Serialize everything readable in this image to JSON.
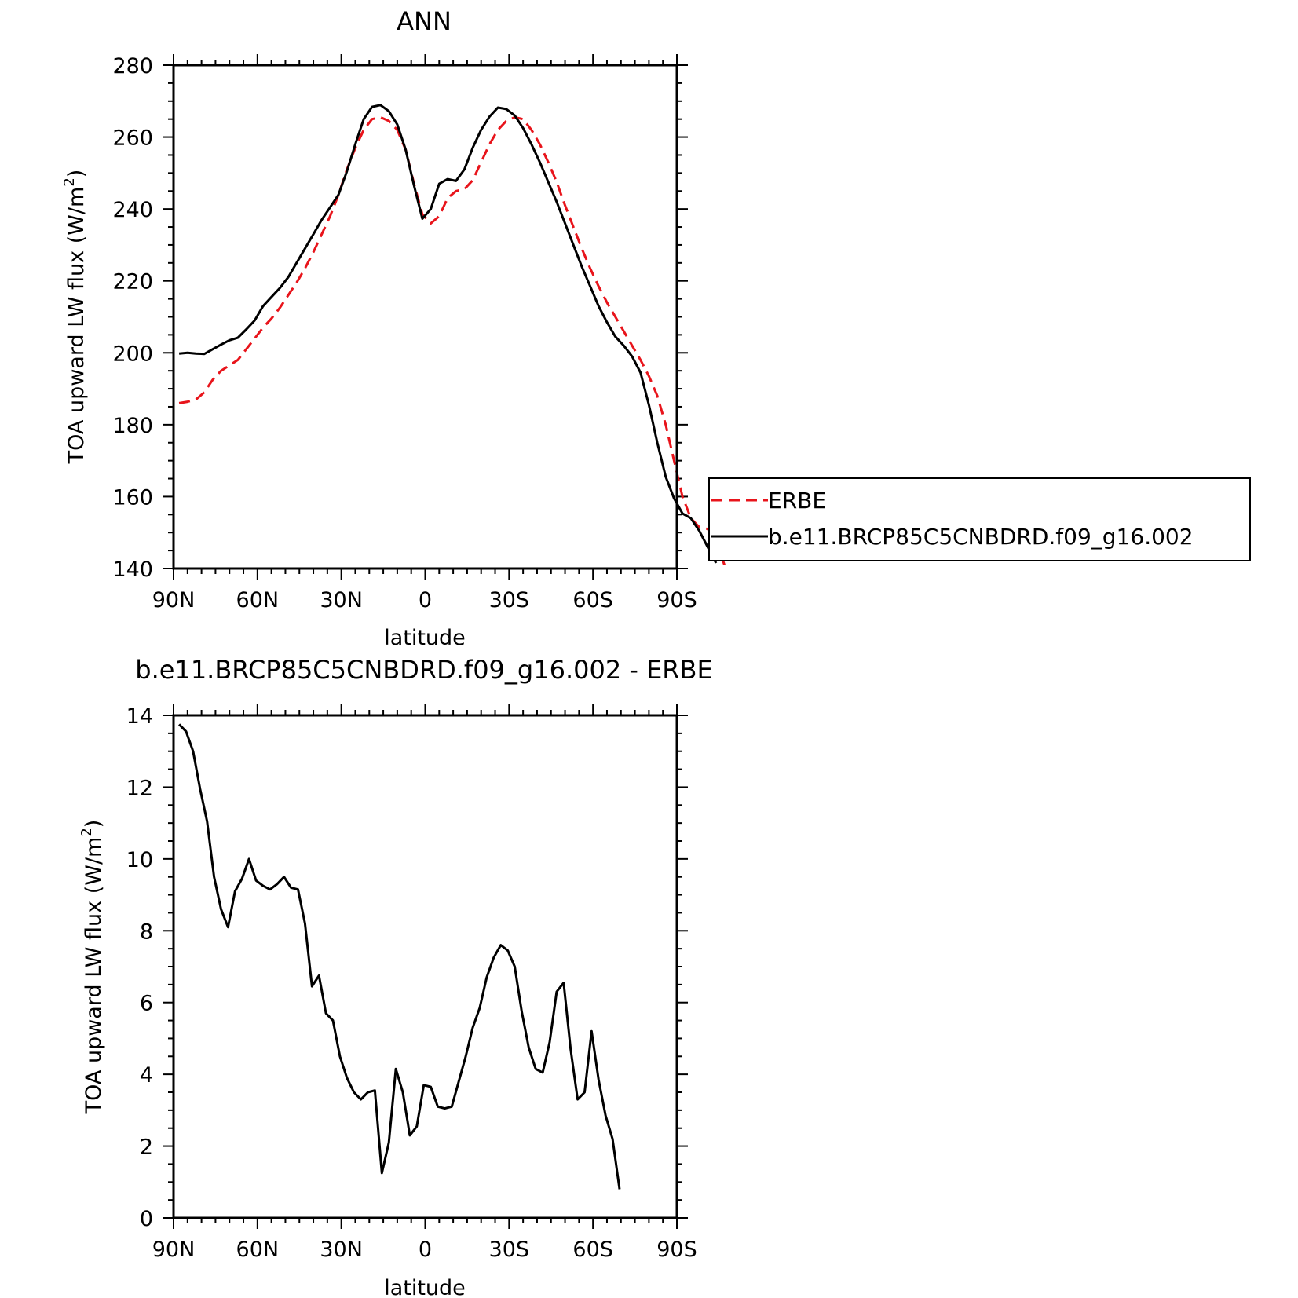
{
  "charts": [
    {
      "type": "line",
      "title": "ANN",
      "xlabel": "latitude",
      "ylabel": "TOA upward LW flux (W/m",
      "ylabel_sup": "2",
      "ylabel_close": ")",
      "xlim": [
        90,
        -90
      ],
      "ylim": [
        140,
        280
      ],
      "x_ticks": [
        {
          "value": 90,
          "label": "90N"
        },
        {
          "value": 60,
          "label": "60N"
        },
        {
          "value": 30,
          "label": "30N"
        },
        {
          "value": 0,
          "label": "0"
        },
        {
          "value": -30,
          "label": "30S"
        },
        {
          "value": -60,
          "label": "60S"
        },
        {
          "value": -90,
          "label": "90S"
        }
      ],
      "x_minor_step": 5,
      "y_ticks": [
        140,
        160,
        180,
        200,
        220,
        240,
        260,
        280
      ],
      "y_minor_step": 5,
      "legend": {
        "placement": "right",
        "entries": [
          {
            "label": "ERBE",
            "color": "#e8141b",
            "dash": true
          },
          {
            "label": "b.e11.BRCP85C5CNBDRD.f09_g16.002",
            "color": "#000000",
            "dash": false
          }
        ]
      },
      "series": [
        {
          "name": "ERBE",
          "color": "#e8141b",
          "dash": true,
          "points": [
            [
              88,
              186
            ],
            [
              85,
              186.4
            ],
            [
              82,
              187
            ],
            [
              79,
              189
            ],
            [
              76,
              192.5
            ],
            [
              73,
              195
            ],
            [
              70,
              196.5
            ],
            [
              67,
              198
            ],
            [
              64,
              201
            ],
            [
              61,
              204
            ],
            [
              58,
              207
            ],
            [
              55,
              209.5
            ],
            [
              52,
              212.5
            ],
            [
              49,
              216
            ],
            [
              46,
              219.5
            ],
            [
              43,
              223.5
            ],
            [
              40,
              228
            ],
            [
              37,
              233
            ],
            [
              34,
              238
            ],
            [
              31,
              244
            ],
            [
              28,
              251
            ],
            [
              25,
              257
            ],
            [
              22,
              262
            ],
            [
              19,
              265
            ],
            [
              16,
              265.5
            ],
            [
              13,
              264.5
            ],
            [
              10,
              262
            ],
            [
              7,
              256.5
            ],
            [
              4,
              247
            ],
            [
              1,
              238.5
            ],
            [
              -2,
              236
            ],
            [
              -5,
              238
            ],
            [
              -8,
              243
            ],
            [
              -11,
              245
            ],
            [
              -14,
              245.5
            ],
            [
              -17,
              248
            ],
            [
              -20,
              253
            ],
            [
              -23,
              258
            ],
            [
              -26,
              262
            ],
            [
              -29,
              264.5
            ],
            [
              -32,
              265.5
            ],
            [
              -35,
              265
            ],
            [
              -38,
              262
            ],
            [
              -41,
              258
            ],
            [
              -44,
              253
            ],
            [
              -47,
              247.5
            ],
            [
              -50,
              241
            ],
            [
              -53,
              235
            ],
            [
              -56,
              229
            ],
            [
              -59,
              223.5
            ],
            [
              -62,
              218.5
            ],
            [
              -65,
              214
            ],
            [
              -68,
              210
            ],
            [
              -71,
              206
            ],
            [
              -74,
              202
            ],
            [
              -77,
              198
            ],
            [
              -80,
              193.5
            ],
            [
              -83,
              188
            ],
            [
              -86,
              180
            ],
            [
              -89,
              170
            ],
            [
              -92,
              160
            ],
            [
              -95,
              154
            ],
            [
              -98,
              151.5
            ],
            [
              -101,
              151
            ],
            [
              -104,
              148
            ],
            [
              -107,
              141
            ]
          ]
        },
        {
          "name": "b.e11.BRCP85C5CNBDRD.f09_g16.002",
          "color": "#000000",
          "dash": false,
          "points": [
            [
              88,
              199.8
            ],
            [
              85,
              200
            ],
            [
              82,
              199.8
            ],
            [
              79,
              199.7
            ],
            [
              76,
              201
            ],
            [
              73,
              202.3
            ],
            [
              70,
              203.5
            ],
            [
              67,
              204.2
            ],
            [
              64,
              206.5
            ],
            [
              61,
              209
            ],
            [
              58,
              213
            ],
            [
              55,
              215.5
            ],
            [
              52,
              218
            ],
            [
              49,
              221
            ],
            [
              46,
              225
            ],
            [
              43,
              229
            ],
            [
              40,
              233
            ],
            [
              37,
              237
            ],
            [
              34,
              240.5
            ],
            [
              31,
              244
            ],
            [
              28,
              250.5
            ],
            [
              25,
              258
            ],
            [
              22,
              265
            ],
            [
              19,
              268.4
            ],
            [
              16,
              268.9
            ],
            [
              13,
              267.2
            ],
            [
              10,
              263.5
            ],
            [
              7,
              256.5
            ],
            [
              4,
              246.5
            ],
            [
              1,
              237.3
            ],
            [
              -2,
              240
            ],
            [
              -5,
              247
            ],
            [
              -8,
              248.3
            ],
            [
              -11,
              247.8
            ],
            [
              -14,
              251
            ],
            [
              -17,
              257
            ],
            [
              -20,
              262
            ],
            [
              -23,
              265.7
            ],
            [
              -26,
              268.2
            ],
            [
              -29,
              267.8
            ],
            [
              -32,
              266
            ],
            [
              -35,
              262.5
            ],
            [
              -38,
              258
            ],
            [
              -41,
              253
            ],
            [
              -44,
              247.5
            ],
            [
              -47,
              242
            ],
            [
              -50,
              236
            ],
            [
              -53,
              230
            ],
            [
              -56,
              224
            ],
            [
              -59,
              218.5
            ],
            [
              -62,
              213
            ],
            [
              -65,
              208.5
            ],
            [
              -68,
              204.5
            ],
            [
              -71,
              202
            ],
            [
              -74,
              199
            ],
            [
              -77,
              194.5
            ],
            [
              -80,
              185.5
            ],
            [
              -83,
              175
            ],
            [
              -86,
              165.5
            ],
            [
              -89,
              159.5
            ],
            [
              -92,
              155.3
            ],
            [
              -95,
              154
            ],
            [
              -98,
              150.5
            ],
            [
              -101,
              146
            ],
            [
              -103,
              143
            ],
            [
              -104,
              141.5
            ]
          ]
        }
      ]
    },
    {
      "type": "line",
      "title": "b.e11.BRCP85C5CNBDRD.f09_g16.002 - ERBE",
      "xlabel": "latitude",
      "ylabel": "TOA upward LW flux (W/m",
      "ylabel_sup": "2",
      "ylabel_close": ")",
      "xlim": [
        90,
        -90
      ],
      "ylim": [
        0,
        14
      ],
      "x_ticks": [
        {
          "value": 90,
          "label": "90N"
        },
        {
          "value": 60,
          "label": "60N"
        },
        {
          "value": 30,
          "label": "30N"
        },
        {
          "value": 0,
          "label": "0"
        },
        {
          "value": -30,
          "label": "30S"
        },
        {
          "value": -60,
          "label": "60S"
        },
        {
          "value": -90,
          "label": "90S"
        }
      ],
      "x_minor_step": 5,
      "y_ticks": [
        0,
        2,
        4,
        6,
        8,
        10,
        12,
        14
      ],
      "y_minor_step": 0.5,
      "series": [
        {
          "name": "",
          "color": "#000000",
          "dash": false,
          "points": [
            [
              88,
              13.75
            ],
            [
              85.5,
              13.55
            ],
            [
              83,
              13.0
            ],
            [
              80.5,
              11.95
            ],
            [
              78,
              11.05
            ],
            [
              75.5,
              9.5
            ],
            [
              73,
              8.6
            ],
            [
              70.5,
              8.1
            ],
            [
              68,
              9.1
            ],
            [
              65.5,
              9.45
            ],
            [
              63,
              10.0
            ],
            [
              60.5,
              9.4
            ],
            [
              58,
              9.25
            ],
            [
              55.5,
              9.15
            ],
            [
              53,
              9.3
            ],
            [
              50.5,
              9.5
            ],
            [
              48,
              9.2
            ],
            [
              45.5,
              9.15
            ],
            [
              43,
              8.2
            ],
            [
              40.5,
              6.45
            ],
            [
              38,
              6.75
            ],
            [
              35.5,
              5.7
            ],
            [
              33,
              5.5
            ],
            [
              30.5,
              4.5
            ],
            [
              28,
              3.9
            ],
            [
              25.5,
              3.5
            ],
            [
              23,
              3.3
            ],
            [
              20.5,
              3.5
            ],
            [
              18,
              3.55
            ],
            [
              15.5,
              1.25
            ],
            [
              13,
              2.1
            ],
            [
              10.5,
              4.15
            ],
            [
              8,
              3.5
            ],
            [
              5.5,
              2.3
            ],
            [
              3,
              2.55
            ],
            [
              0.5,
              3.7
            ],
            [
              -2,
              3.65
            ],
            [
              -4.5,
              3.1
            ],
            [
              -7,
              3.05
            ],
            [
              -9.5,
              3.1
            ],
            [
              -12,
              3.8
            ],
            [
              -14.5,
              4.5
            ],
            [
              -17,
              5.3
            ],
            [
              -19.5,
              5.85
            ],
            [
              -22,
              6.7
            ],
            [
              -24.5,
              7.25
            ],
            [
              -27,
              7.6
            ],
            [
              -29.5,
              7.45
            ],
            [
              -32,
              7.0
            ],
            [
              -34.5,
              5.75
            ],
            [
              -37,
              4.75
            ],
            [
              -39.5,
              4.15
            ],
            [
              -42,
              4.05
            ],
            [
              -44.5,
              4.9
            ],
            [
              -47,
              6.3
            ],
            [
              -49.5,
              6.55
            ],
            [
              -52,
              4.7
            ],
            [
              -54.5,
              3.3
            ],
            [
              -57,
              3.5
            ],
            [
              -59.5,
              5.2
            ],
            [
              -62,
              3.85
            ],
            [
              -64.5,
              2.85
            ],
            [
              -67,
              2.2
            ],
            [
              -69.5,
              0.8
            ]
          ]
        }
      ]
    }
  ]
}
